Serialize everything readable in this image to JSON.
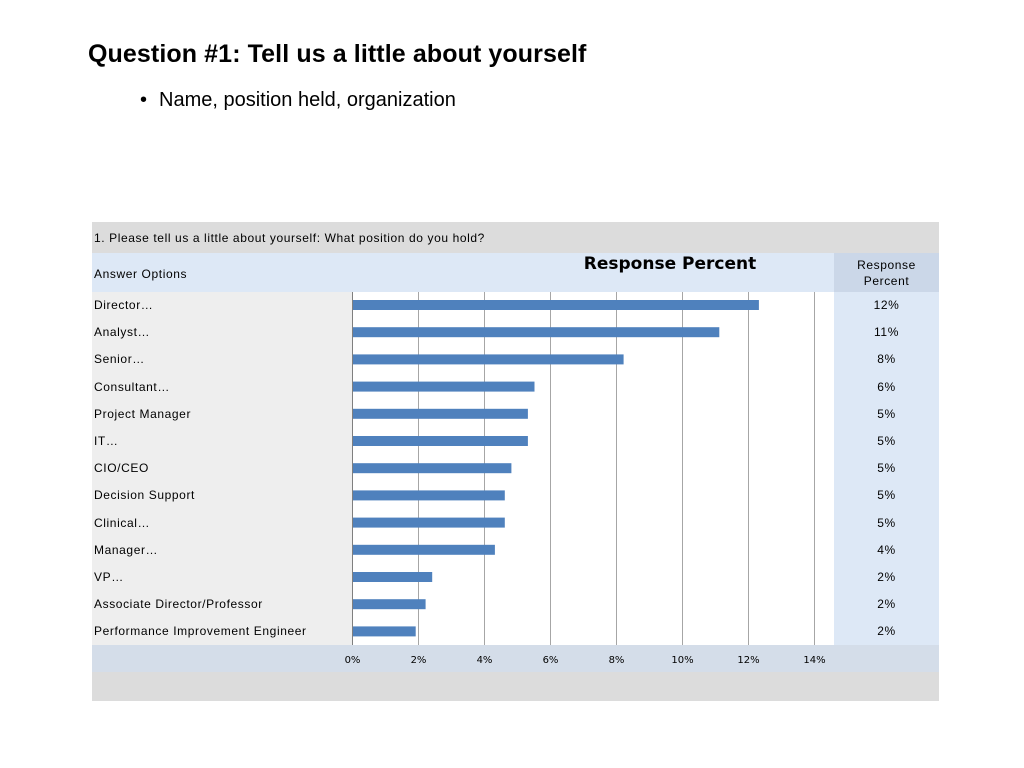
{
  "slide": {
    "title": "Question #1: Tell us a little about yourself",
    "bullet": "Name, position held, organization"
  },
  "survey": {
    "question": "1. Please tell us a little about yourself:  What position do you hold?",
    "answer_options_header": "Answer Options",
    "response_percent_header_line1": "Response",
    "response_percent_header_line2": "Percent"
  },
  "chart_data": {
    "type": "bar",
    "orientation": "horizontal",
    "title": "Response Percent",
    "categories": [
      "Director…",
      "Analyst…",
      "Senior…",
      "Consultant…",
      "Project Manager",
      "IT…",
      "CIO/CEO",
      "Decision Support",
      "Clinical…",
      "Manager…",
      "VP…",
      "Associate Director/Professor",
      "Performance Improvement Engineer"
    ],
    "values": [
      12.3,
      11.1,
      8.2,
      5.5,
      5.3,
      5.3,
      4.8,
      4.6,
      4.6,
      4.3,
      2.4,
      2.2,
      1.9
    ],
    "value_labels": [
      "12%",
      "11%",
      "8%",
      "6%",
      "5%",
      "5%",
      "5%",
      "5%",
      "5%",
      "4%",
      "2%",
      "2%",
      "2%"
    ],
    "xlim": [
      0,
      14
    ],
    "x_ticks": [
      0,
      2,
      4,
      6,
      8,
      10,
      12,
      14
    ],
    "x_tick_labels": [
      "0%",
      "2%",
      "4%",
      "6%",
      "8%",
      "10%",
      "12%",
      "14%"
    ],
    "grid": true,
    "bar_color": "#4f81bd"
  }
}
